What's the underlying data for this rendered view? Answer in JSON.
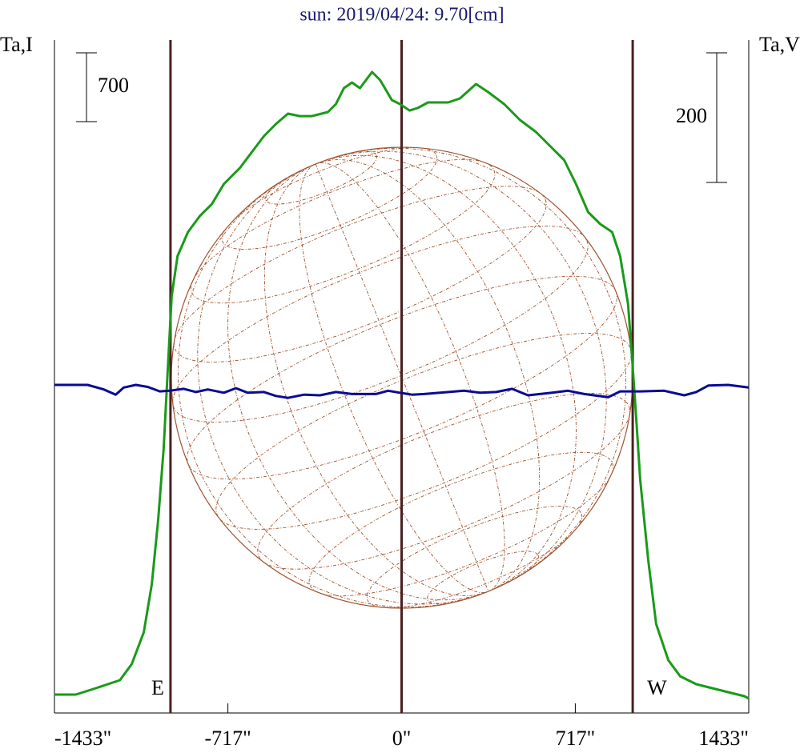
{
  "chart_data": {
    "type": "line",
    "title": "sun: 2019/04/24: 9.70[cm]",
    "ylabel": "Ta,I",
    "y2label": "Ta,V",
    "xlim": [
      -1433,
      1433
    ],
    "xticks": [
      {
        "value": -1433,
        "label": "-1433\""
      },
      {
        "value": -717,
        "label": "-717\""
      },
      {
        "value": 0,
        "label": "0\""
      },
      {
        "value": 717,
        "label": "717\""
      },
      {
        "value": 1433,
        "label": "1433\""
      }
    ],
    "ylim": [
      0,
      6846
    ],
    "y2lim": [
      -501,
      537
    ],
    "scale_bars": [
      {
        "value": 700,
        "label": "700",
        "axis": "y"
      },
      {
        "value": 200,
        "label": "200",
        "axis": "y2"
      }
    ],
    "limb_lines": [
      -954,
      0,
      954
    ],
    "limb_line_color": "#4a2020",
    "limb_labels": [
      "E",
      "W"
    ],
    "series": [
      {
        "color": "#1a9a1a",
        "axis": "y",
        "x": [
          -1433,
          -1345,
          -1262,
          -1163,
          -1114,
          -1064,
          -1031,
          -1005,
          -982,
          -965,
          -949,
          -925,
          -882,
          -833,
          -783,
          -734,
          -701,
          -668,
          -618,
          -568,
          -519,
          -469,
          -420,
          -370,
          -304,
          -271,
          -238,
          -205,
          -172,
          -122,
          -89,
          -40,
          -7,
          33,
          66,
          109,
          192,
          241,
          307,
          357,
          423,
          489,
          555,
          621,
          671,
          720,
          770,
          820,
          869,
          902,
          935,
          952,
          968,
          985,
          1018,
          1051,
          1101,
          1150,
          1216,
          1282,
          1348,
          1415,
          1433
        ],
        "values": [
          187,
          187,
          252,
          334,
          497,
          822,
          1311,
          1962,
          2694,
          3508,
          4241,
          4648,
          4892,
          5055,
          5177,
          5381,
          5462,
          5543,
          5706,
          5869,
          5991,
          6097,
          6072,
          6072,
          6113,
          6195,
          6357,
          6414,
          6357,
          6520,
          6439,
          6235,
          6195,
          6129,
          6154,
          6211,
          6211,
          6252,
          6398,
          6317,
          6195,
          6032,
          5910,
          5747,
          5625,
          5381,
          5096,
          4974,
          4892,
          4648,
          4160,
          3590,
          3020,
          2369,
          1555,
          904,
          537,
          374,
          293,
          252,
          212,
          171,
          147
        ]
      },
      {
        "color": "#0a0a96",
        "axis": "y2",
        "x": [
          -1433,
          -1296,
          -1229,
          -1180,
          -1147,
          -1097,
          -1048,
          -998,
          -958,
          -899,
          -849,
          -800,
          -734,
          -684,
          -635,
          -568,
          -519,
          -469,
          -403,
          -337,
          -271,
          -205,
          -106,
          -56,
          -7,
          43,
          93,
          159,
          258,
          324,
          390,
          456,
          522,
          621,
          687,
          754,
          853,
          902,
          985,
          1084,
          1167,
          1216,
          1266,
          1348,
          1433
        ],
        "values": [
          5,
          5,
          -2,
          -10,
          1,
          5,
          2,
          -5,
          -4,
          -1,
          -6,
          -2,
          -7,
          0,
          -7,
          -6,
          -12,
          -15,
          -10,
          -11,
          -6,
          -9,
          -9,
          -4,
          -7,
          -10,
          -9,
          -7,
          -4,
          -7,
          -6,
          -1,
          -11,
          -7,
          -4,
          -9,
          -14,
          -5,
          -5,
          -4,
          -11,
          -6,
          4,
          5,
          1
        ]
      }
    ]
  }
}
